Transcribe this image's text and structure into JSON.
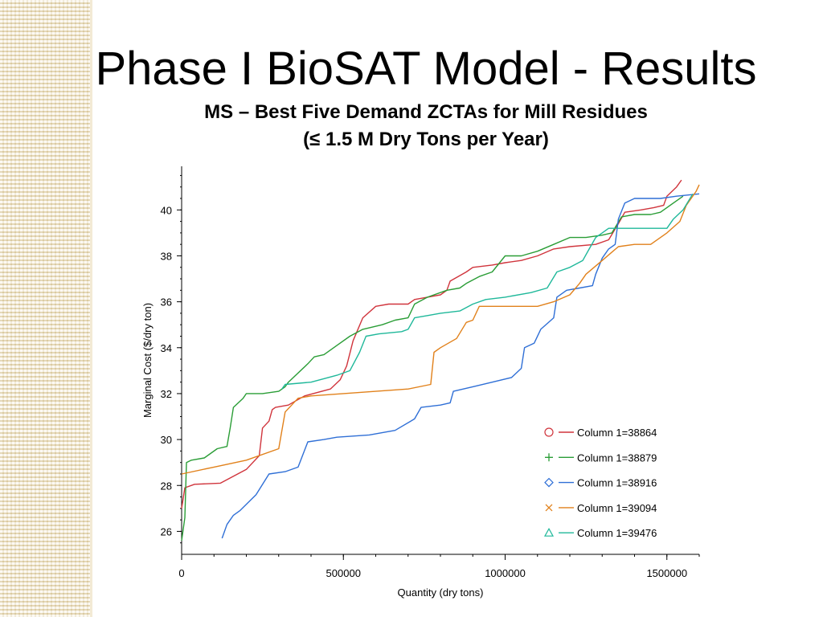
{
  "slide": {
    "title": "Phase I BioSAT Model - Results",
    "subtitle_line1": "MS – Best Five Demand ZCTAs for Mill Residues",
    "subtitle_line2": "(≤ 1.5 M Dry Tons per Year)"
  },
  "chart_data": {
    "type": "line",
    "xlabel": "Quantity (dry tons)",
    "ylabel": "Marginal Cost ($/dry ton)",
    "xlim": [
      0,
      1600000
    ],
    "ylim": [
      25,
      41.9
    ],
    "xticks": [
      0,
      500000,
      1000000,
      1500000
    ],
    "xtick_labels": [
      "0",
      "500000",
      "1000000",
      "1500000"
    ],
    "yticks": [
      26,
      28,
      30,
      32,
      34,
      36,
      38,
      40
    ],
    "ytick_labels": [
      "26",
      "28",
      "30",
      "32",
      "34",
      "36",
      "38",
      "40"
    ],
    "grid": false,
    "legend_position": "lower-right",
    "series": [
      {
        "name": "Column 1=38864",
        "marker": "circle",
        "color": "#d0343c",
        "points": [
          [
            0,
            27.0
          ],
          [
            10000,
            27.9
          ],
          [
            40000,
            28.05
          ],
          [
            120000,
            28.1
          ],
          [
            200000,
            28.7
          ],
          [
            240000,
            29.3
          ],
          [
            250000,
            30.5
          ],
          [
            270000,
            30.8
          ],
          [
            280000,
            31.3
          ],
          [
            290000,
            31.4
          ],
          [
            330000,
            31.5
          ],
          [
            380000,
            31.9
          ],
          [
            460000,
            32.2
          ],
          [
            490000,
            32.6
          ],
          [
            510000,
            33.2
          ],
          [
            530000,
            34.3
          ],
          [
            560000,
            35.3
          ],
          [
            600000,
            35.8
          ],
          [
            640000,
            35.9
          ],
          [
            700000,
            35.9
          ],
          [
            720000,
            36.1
          ],
          [
            760000,
            36.2
          ],
          [
            800000,
            36.3
          ],
          [
            820000,
            36.5
          ],
          [
            830000,
            36.9
          ],
          [
            880000,
            37.3
          ],
          [
            900000,
            37.5
          ],
          [
            960000,
            37.6
          ],
          [
            1000000,
            37.7
          ],
          [
            1050000,
            37.8
          ],
          [
            1100000,
            38.0
          ],
          [
            1150000,
            38.3
          ],
          [
            1200000,
            38.4
          ],
          [
            1280000,
            38.5
          ],
          [
            1320000,
            38.7
          ],
          [
            1350000,
            39.4
          ],
          [
            1370000,
            39.9
          ],
          [
            1420000,
            40.0
          ],
          [
            1460000,
            40.1
          ],
          [
            1490000,
            40.2
          ],
          [
            1500000,
            40.6
          ],
          [
            1530000,
            41.0
          ],
          [
            1545000,
            41.3
          ]
        ]
      },
      {
        "name": "Column 1=38879",
        "marker": "plus",
        "color": "#2a9d36",
        "points": [
          [
            0,
            25.6
          ],
          [
            10000,
            26.6
          ],
          [
            15000,
            29.0
          ],
          [
            30000,
            29.1
          ],
          [
            70000,
            29.2
          ],
          [
            110000,
            29.6
          ],
          [
            140000,
            29.7
          ],
          [
            150000,
            30.5
          ],
          [
            160000,
            31.4
          ],
          [
            190000,
            31.8
          ],
          [
            200000,
            32.0
          ],
          [
            250000,
            32.0
          ],
          [
            300000,
            32.1
          ],
          [
            320000,
            32.3
          ],
          [
            330000,
            32.5
          ],
          [
            390000,
            33.3
          ],
          [
            410000,
            33.6
          ],
          [
            440000,
            33.7
          ],
          [
            480000,
            34.1
          ],
          [
            520000,
            34.5
          ],
          [
            560000,
            34.8
          ],
          [
            620000,
            35.0
          ],
          [
            660000,
            35.2
          ],
          [
            700000,
            35.3
          ],
          [
            720000,
            35.9
          ],
          [
            760000,
            36.2
          ],
          [
            820000,
            36.5
          ],
          [
            860000,
            36.6
          ],
          [
            880000,
            36.8
          ],
          [
            920000,
            37.1
          ],
          [
            960000,
            37.3
          ],
          [
            1000000,
            38.0
          ],
          [
            1050000,
            38.0
          ],
          [
            1100000,
            38.2
          ],
          [
            1150000,
            38.5
          ],
          [
            1200000,
            38.8
          ],
          [
            1250000,
            38.8
          ],
          [
            1300000,
            38.9
          ],
          [
            1330000,
            39.0
          ],
          [
            1360000,
            39.7
          ],
          [
            1400000,
            39.8
          ],
          [
            1450000,
            39.8
          ],
          [
            1480000,
            39.9
          ],
          [
            1500000,
            40.1
          ],
          [
            1550000,
            40.6
          ]
        ]
      },
      {
        "name": "Column 1=38916",
        "marker": "diamond",
        "color": "#2f6fd6",
        "points": [
          [
            125000,
            25.7
          ],
          [
            140000,
            26.3
          ],
          [
            160000,
            26.7
          ],
          [
            180000,
            26.9
          ],
          [
            230000,
            27.6
          ],
          [
            270000,
            28.5
          ],
          [
            320000,
            28.6
          ],
          [
            360000,
            28.8
          ],
          [
            390000,
            29.9
          ],
          [
            440000,
            30.0
          ],
          [
            480000,
            30.1
          ],
          [
            580000,
            30.2
          ],
          [
            660000,
            30.4
          ],
          [
            720000,
            30.9
          ],
          [
            740000,
            31.4
          ],
          [
            800000,
            31.5
          ],
          [
            830000,
            31.6
          ],
          [
            840000,
            32.1
          ],
          [
            900000,
            32.3
          ],
          [
            960000,
            32.5
          ],
          [
            1020000,
            32.7
          ],
          [
            1050000,
            33.1
          ],
          [
            1060000,
            34.0
          ],
          [
            1090000,
            34.2
          ],
          [
            1110000,
            34.8
          ],
          [
            1150000,
            35.3
          ],
          [
            1160000,
            36.2
          ],
          [
            1190000,
            36.5
          ],
          [
            1230000,
            36.6
          ],
          [
            1270000,
            36.7
          ],
          [
            1280000,
            37.2
          ],
          [
            1300000,
            37.9
          ],
          [
            1320000,
            38.3
          ],
          [
            1340000,
            38.5
          ],
          [
            1350000,
            39.6
          ],
          [
            1370000,
            40.3
          ],
          [
            1400000,
            40.5
          ],
          [
            1480000,
            40.5
          ],
          [
            1530000,
            40.6
          ],
          [
            1600000,
            40.7
          ]
        ]
      },
      {
        "name": "Column 1=39094",
        "marker": "x",
        "color": "#e1811b",
        "points": [
          [
            0,
            28.5
          ],
          [
            100000,
            28.8
          ],
          [
            200000,
            29.1
          ],
          [
            300000,
            29.6
          ],
          [
            320000,
            31.2
          ],
          [
            340000,
            31.5
          ],
          [
            360000,
            31.8
          ],
          [
            400000,
            31.9
          ],
          [
            500000,
            32.0
          ],
          [
            600000,
            32.1
          ],
          [
            700000,
            32.2
          ],
          [
            770000,
            32.4
          ],
          [
            780000,
            33.8
          ],
          [
            800000,
            34.0
          ],
          [
            850000,
            34.4
          ],
          [
            880000,
            35.1
          ],
          [
            900000,
            35.2
          ],
          [
            920000,
            35.8
          ],
          [
            1000000,
            35.8
          ],
          [
            1100000,
            35.8
          ],
          [
            1150000,
            36.0
          ],
          [
            1200000,
            36.3
          ],
          [
            1230000,
            36.8
          ],
          [
            1250000,
            37.2
          ],
          [
            1300000,
            37.8
          ],
          [
            1350000,
            38.4
          ],
          [
            1400000,
            38.5
          ],
          [
            1450000,
            38.5
          ],
          [
            1500000,
            39.0
          ],
          [
            1540000,
            39.5
          ],
          [
            1560000,
            40.2
          ],
          [
            1590000,
            40.8
          ],
          [
            1600000,
            41.1
          ]
        ]
      },
      {
        "name": "Column 1=39476",
        "marker": "triangle",
        "color": "#1fb89a",
        "points": [
          [
            310000,
            32.2
          ],
          [
            320000,
            32.4
          ],
          [
            400000,
            32.5
          ],
          [
            480000,
            32.8
          ],
          [
            520000,
            33.0
          ],
          [
            550000,
            33.8
          ],
          [
            570000,
            34.5
          ],
          [
            610000,
            34.6
          ],
          [
            680000,
            34.7
          ],
          [
            700000,
            34.8
          ],
          [
            720000,
            35.3
          ],
          [
            760000,
            35.4
          ],
          [
            800000,
            35.5
          ],
          [
            860000,
            35.6
          ],
          [
            900000,
            35.9
          ],
          [
            940000,
            36.1
          ],
          [
            1000000,
            36.2
          ],
          [
            1080000,
            36.4
          ],
          [
            1130000,
            36.6
          ],
          [
            1160000,
            37.3
          ],
          [
            1200000,
            37.5
          ],
          [
            1240000,
            37.8
          ],
          [
            1260000,
            38.3
          ],
          [
            1280000,
            38.8
          ],
          [
            1300000,
            39.0
          ],
          [
            1320000,
            39.2
          ],
          [
            1400000,
            39.2
          ],
          [
            1500000,
            39.2
          ],
          [
            1520000,
            39.6
          ],
          [
            1550000,
            40.0
          ],
          [
            1580000,
            40.7
          ]
        ]
      }
    ]
  }
}
